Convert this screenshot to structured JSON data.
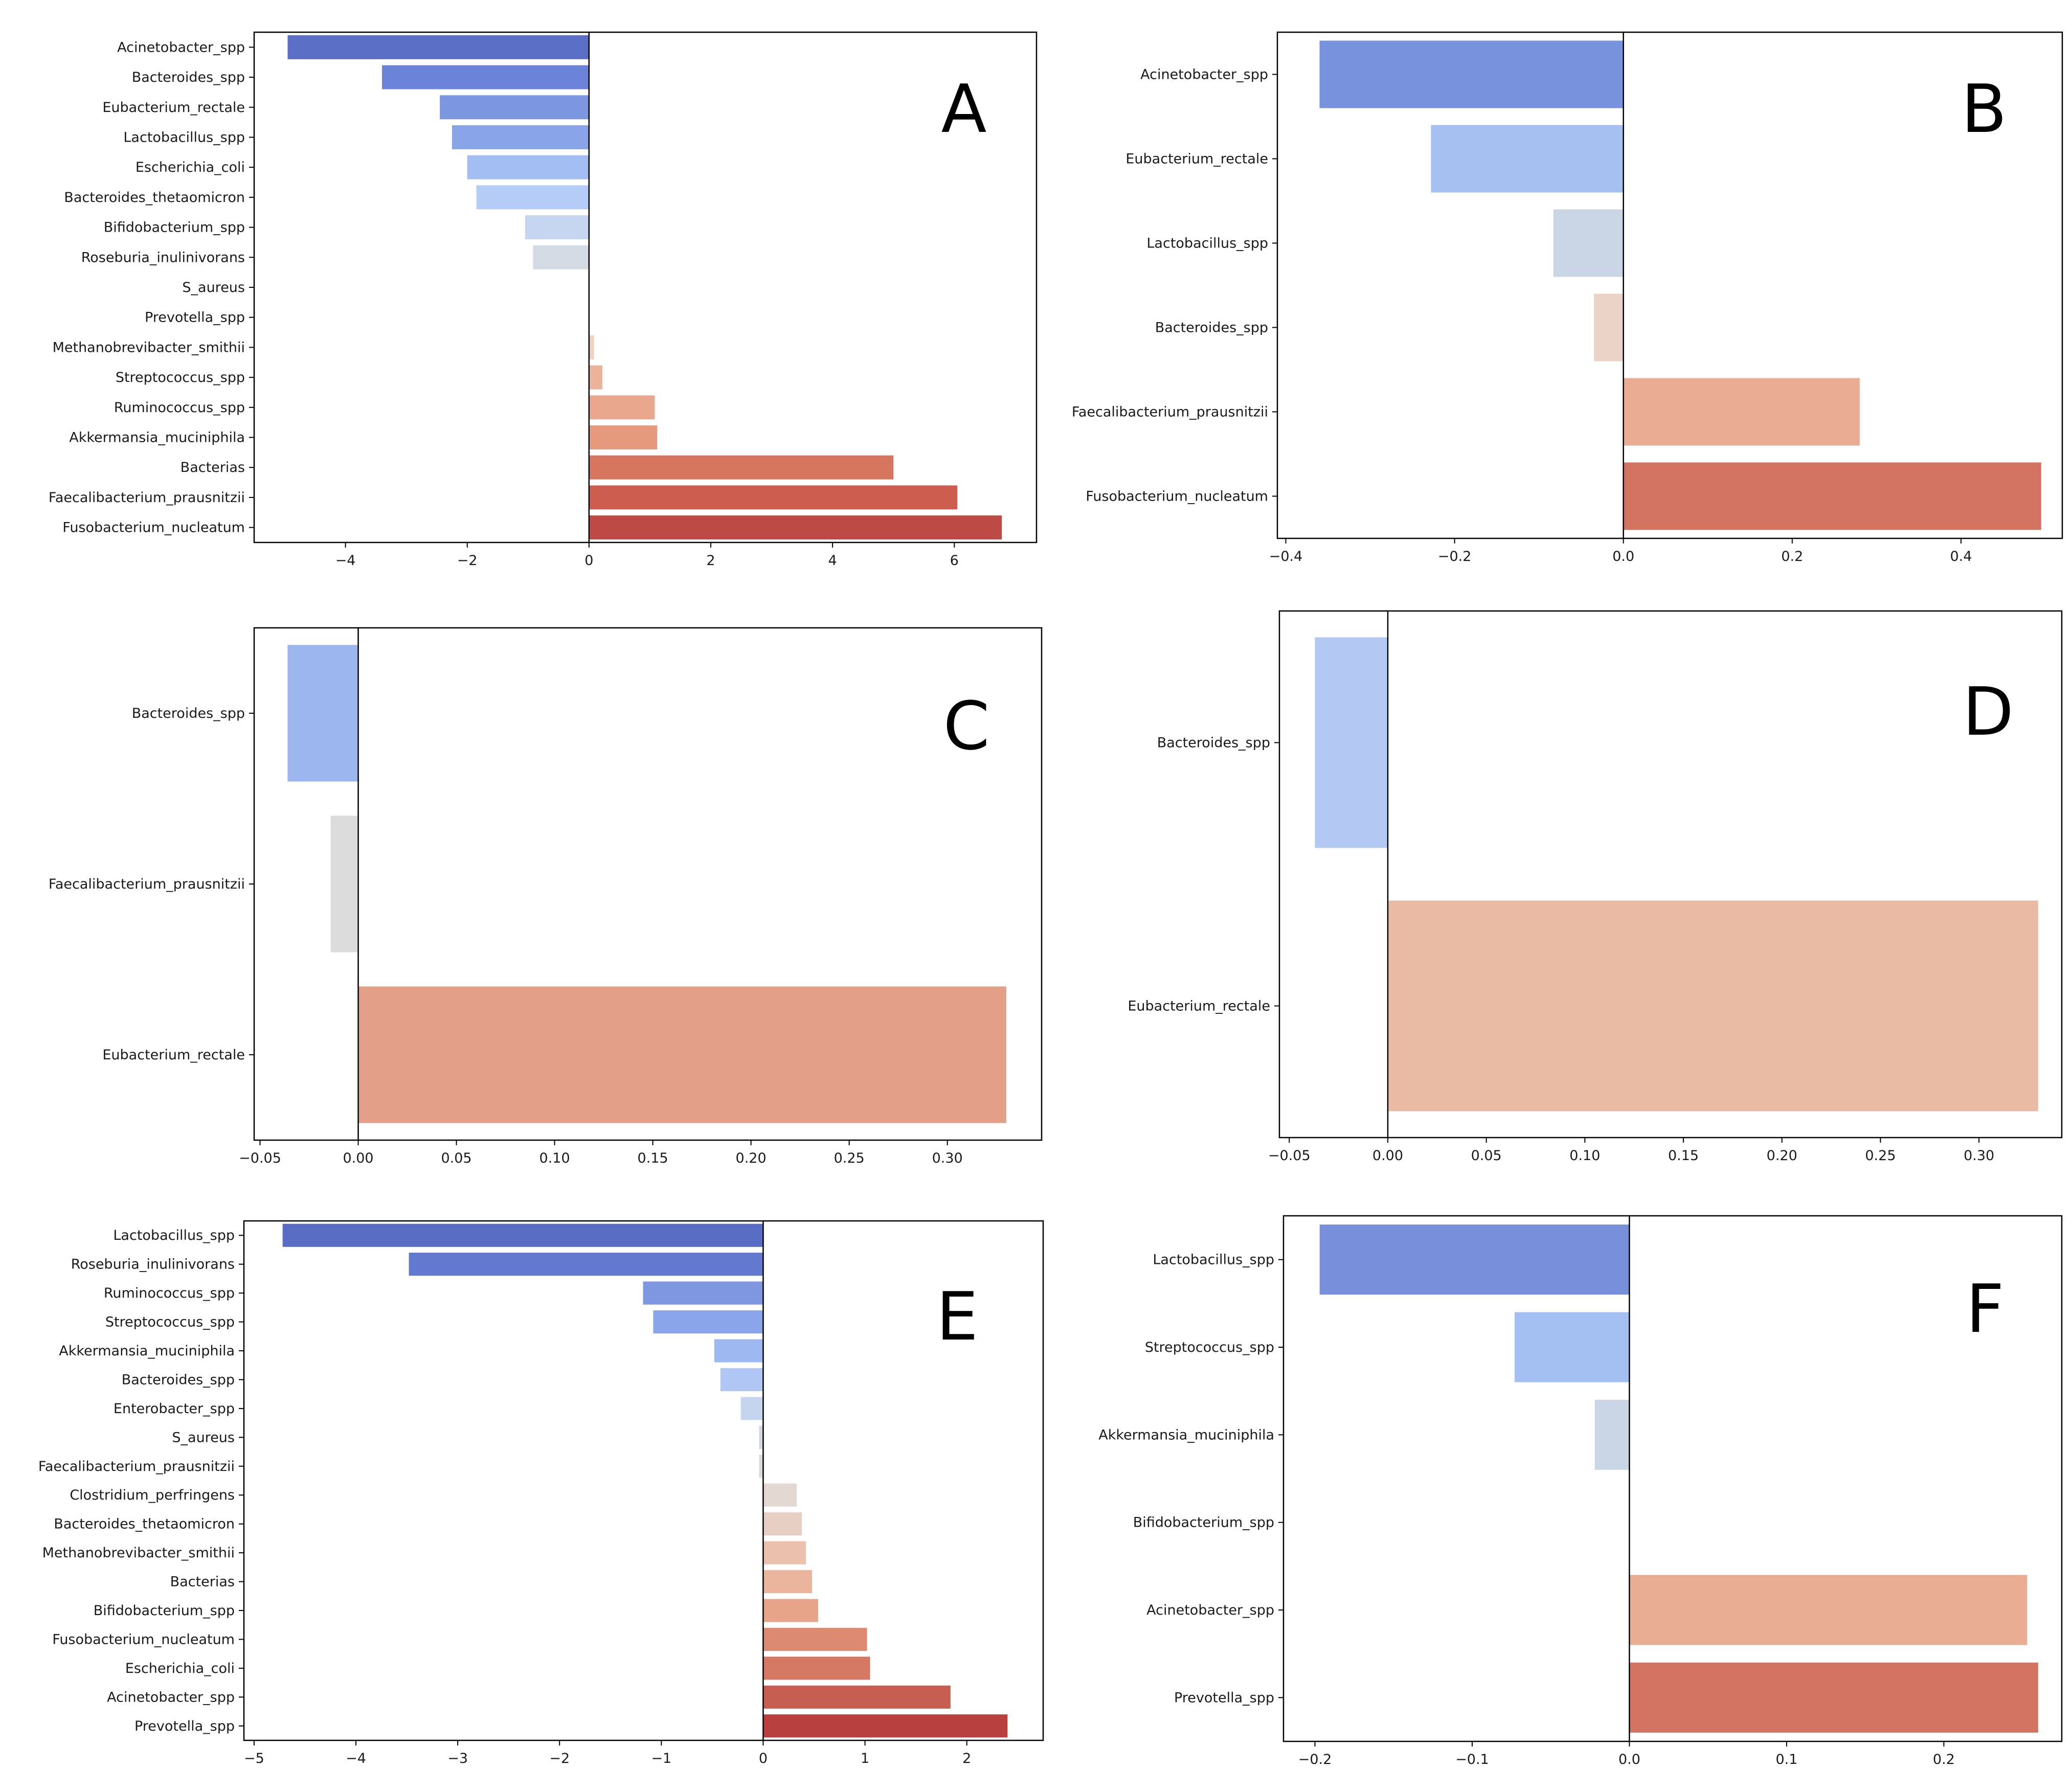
{
  "chart_data": [
    {
      "panel": "A",
      "type": "bar",
      "orientation": "horizontal",
      "categories": [
        "Acinetobacter_spp",
        "Bacteroides_spp",
        "Eubacterium_rectale",
        "Lactobacillus_spp",
        "Escherichia_coli",
        "Bacteroides_thetaomicron",
        "Bifidobacterium_spp",
        "Roseburia_inulinivorans",
        "S_aureus",
        "Prevotella_spp",
        "Methanobrevibacter_smithii",
        "Streptococcus_spp",
        "Ruminococcus_spp",
        "Akkermansia_muciniphila",
        "Bacterias",
        "Faecalibacterium_prausnitzii",
        "Fusobacterium_nucleatum"
      ],
      "values": [
        -4.95,
        -3.4,
        -2.45,
        -2.25,
        -2.0,
        -1.85,
        -1.05,
        -0.92,
        0.0,
        0.0,
        0.08,
        0.22,
        1.08,
        1.12,
        5.0,
        6.05,
        6.78
      ],
      "xlim": [
        -5.5,
        7.35
      ],
      "xticks": [
        -4,
        -2,
        0,
        2,
        4,
        6
      ],
      "xticklabels": [
        "−4",
        "−2",
        "0",
        "2",
        "4",
        "6"
      ],
      "colors": [
        "#5b6fc6",
        "#6b84d9",
        "#7d96e2",
        "#8aa4ea",
        "#a3bef3",
        "#b5cdf6",
        "#c6d6f0",
        "#d4dbe5",
        "#dcdcdc",
        "#dcdcdc",
        "#efd0c1",
        "#ebb39b",
        "#e9a88d",
        "#e59a7e",
        "#d6765f",
        "#cd5e4f",
        "#bd4a45"
      ],
      "title": "",
      "xlabel": "",
      "ylabel": ""
    },
    {
      "panel": "B",
      "type": "bar",
      "orientation": "horizontal",
      "categories": [
        "Acinetobacter_spp",
        "Eubacterium_rectale",
        "Lactobacillus_spp",
        "Bacteroides_spp",
        "Faecalibacterium_prausnitzii",
        "Fusobacterium_nucleatum"
      ],
      "values": [
        -0.36,
        -0.228,
        -0.083,
        -0.035,
        0.28,
        0.495
      ],
      "xlim": [
        -0.41,
        0.52
      ],
      "xticks": [
        -0.4,
        -0.2,
        0.0,
        0.2,
        0.4
      ],
      "xticklabels": [
        "−0.4",
        "−0.2",
        "0.0",
        "0.2",
        "0.4"
      ],
      "colors": [
        "#7892dd",
        "#a6c0f2",
        "#cad5e6",
        "#ebd3c8",
        "#eaad93",
        "#d27461"
      ],
      "title": "",
      "xlabel": "",
      "ylabel": ""
    },
    {
      "panel": "C",
      "type": "bar",
      "orientation": "horizontal",
      "categories": [
        "Bacteroides_spp",
        "Faecalibacterium_prausnitzii",
        "Eubacterium_rectale"
      ],
      "values": [
        -0.036,
        -0.014,
        0.33
      ],
      "xlim": [
        -0.053,
        0.348
      ],
      "xticks": [
        -0.05,
        0.0,
        0.05,
        0.1,
        0.15,
        0.2,
        0.25,
        0.3
      ],
      "xticklabels": [
        "−0.05",
        "0.00",
        "0.05",
        "0.10",
        "0.15",
        "0.20",
        "0.25",
        "0.30"
      ],
      "colors": [
        "#9cb6f0",
        "#dcdcdc",
        "#e39f87"
      ],
      "title": "",
      "xlabel": "",
      "ylabel": ""
    },
    {
      "panel": "D",
      "type": "bar",
      "orientation": "horizontal",
      "categories": [
        "Bacteroides_spp",
        "Eubacterium_rectale"
      ],
      "values": [
        -0.037,
        0.33
      ],
      "xlim": [
        -0.055,
        0.342
      ],
      "xticks": [
        -0.05,
        0.0,
        0.05,
        0.1,
        0.15,
        0.2,
        0.25,
        0.3
      ],
      "xticklabels": [
        "−0.05",
        "0.00",
        "0.05",
        "0.10",
        "0.15",
        "0.20",
        "0.25",
        "0.30"
      ],
      "colors": [
        "#b3c9f3",
        "#eabba4"
      ],
      "title": "",
      "xlabel": "",
      "ylabel": ""
    },
    {
      "panel": "E",
      "type": "bar",
      "orientation": "horizontal",
      "categories": [
        "Lactobacillus_spp",
        "Roseburia_inulinivorans",
        "Ruminococcus_spp",
        "Streptococcus_spp",
        "Akkermansia_muciniphila",
        "Bacteroides_spp",
        "Enterobacter_spp",
        "S_aureus",
        "Faecalibacterium_prausnitzii",
        "Clostridium_perfringens",
        "Bacteroides_thetaomicron",
        "Methanobrevibacter_smithii",
        "Bacterias",
        "Bifidobacterium_spp",
        "Fusobacterium_nucleatum",
        "Escherichia_coli",
        "Acinetobacter_spp",
        "Prevotella_spp"
      ],
      "values": [
        -4.72,
        -3.48,
        -1.18,
        -1.08,
        -0.48,
        -0.42,
        -0.22,
        -0.04,
        -0.04,
        0.33,
        0.38,
        0.42,
        0.48,
        0.54,
        1.02,
        1.05,
        1.84,
        2.4
      ],
      "xlim": [
        -5.1,
        2.75
      ],
      "xticks": [
        -5,
        -4,
        -3,
        -2,
        -1,
        0,
        1,
        2
      ],
      "xticklabels": [
        "−5",
        "−4",
        "−3",
        "−2",
        "−1",
        "0",
        "1",
        "2"
      ],
      "colors": [
        "#5a6dc5",
        "#6379d0",
        "#7e97e0",
        "#8aa5ea",
        "#9eb8f1",
        "#b0c6f4",
        "#c5d4ef",
        "#d3d8e0",
        "#d9dadc",
        "#e4d8d2",
        "#e8cfc3",
        "#ebc0ac",
        "#eab59c",
        "#e8a488",
        "#dd8a72",
        "#d57864",
        "#c65f52",
        "#b8403f"
      ],
      "title": "",
      "xlabel": "",
      "ylabel": ""
    },
    {
      "panel": "F",
      "type": "bar",
      "orientation": "horizontal",
      "categories": [
        "Lactobacillus_spp",
        "Streptococcus_spp",
        "Akkermansia_muciniphila",
        "Bifidobacterium_spp",
        "Acinetobacter_spp",
        "Prevotella_spp"
      ],
      "values": [
        -0.197,
        -0.073,
        -0.022,
        0.0,
        0.253,
        0.26
      ],
      "xlim": [
        -0.22,
        0.275
      ],
      "xticks": [
        -0.2,
        -0.1,
        0.0,
        0.1,
        0.2
      ],
      "xticklabels": [
        "−0.2",
        "−0.1",
        "0.0",
        "0.1",
        "0.2"
      ],
      "colors": [
        "#7890dc",
        "#a4bff2",
        "#cad5e6",
        "#dcdcdc",
        "#e9ad94",
        "#d27461"
      ],
      "title": "",
      "xlabel": "",
      "ylabel": ""
    }
  ]
}
